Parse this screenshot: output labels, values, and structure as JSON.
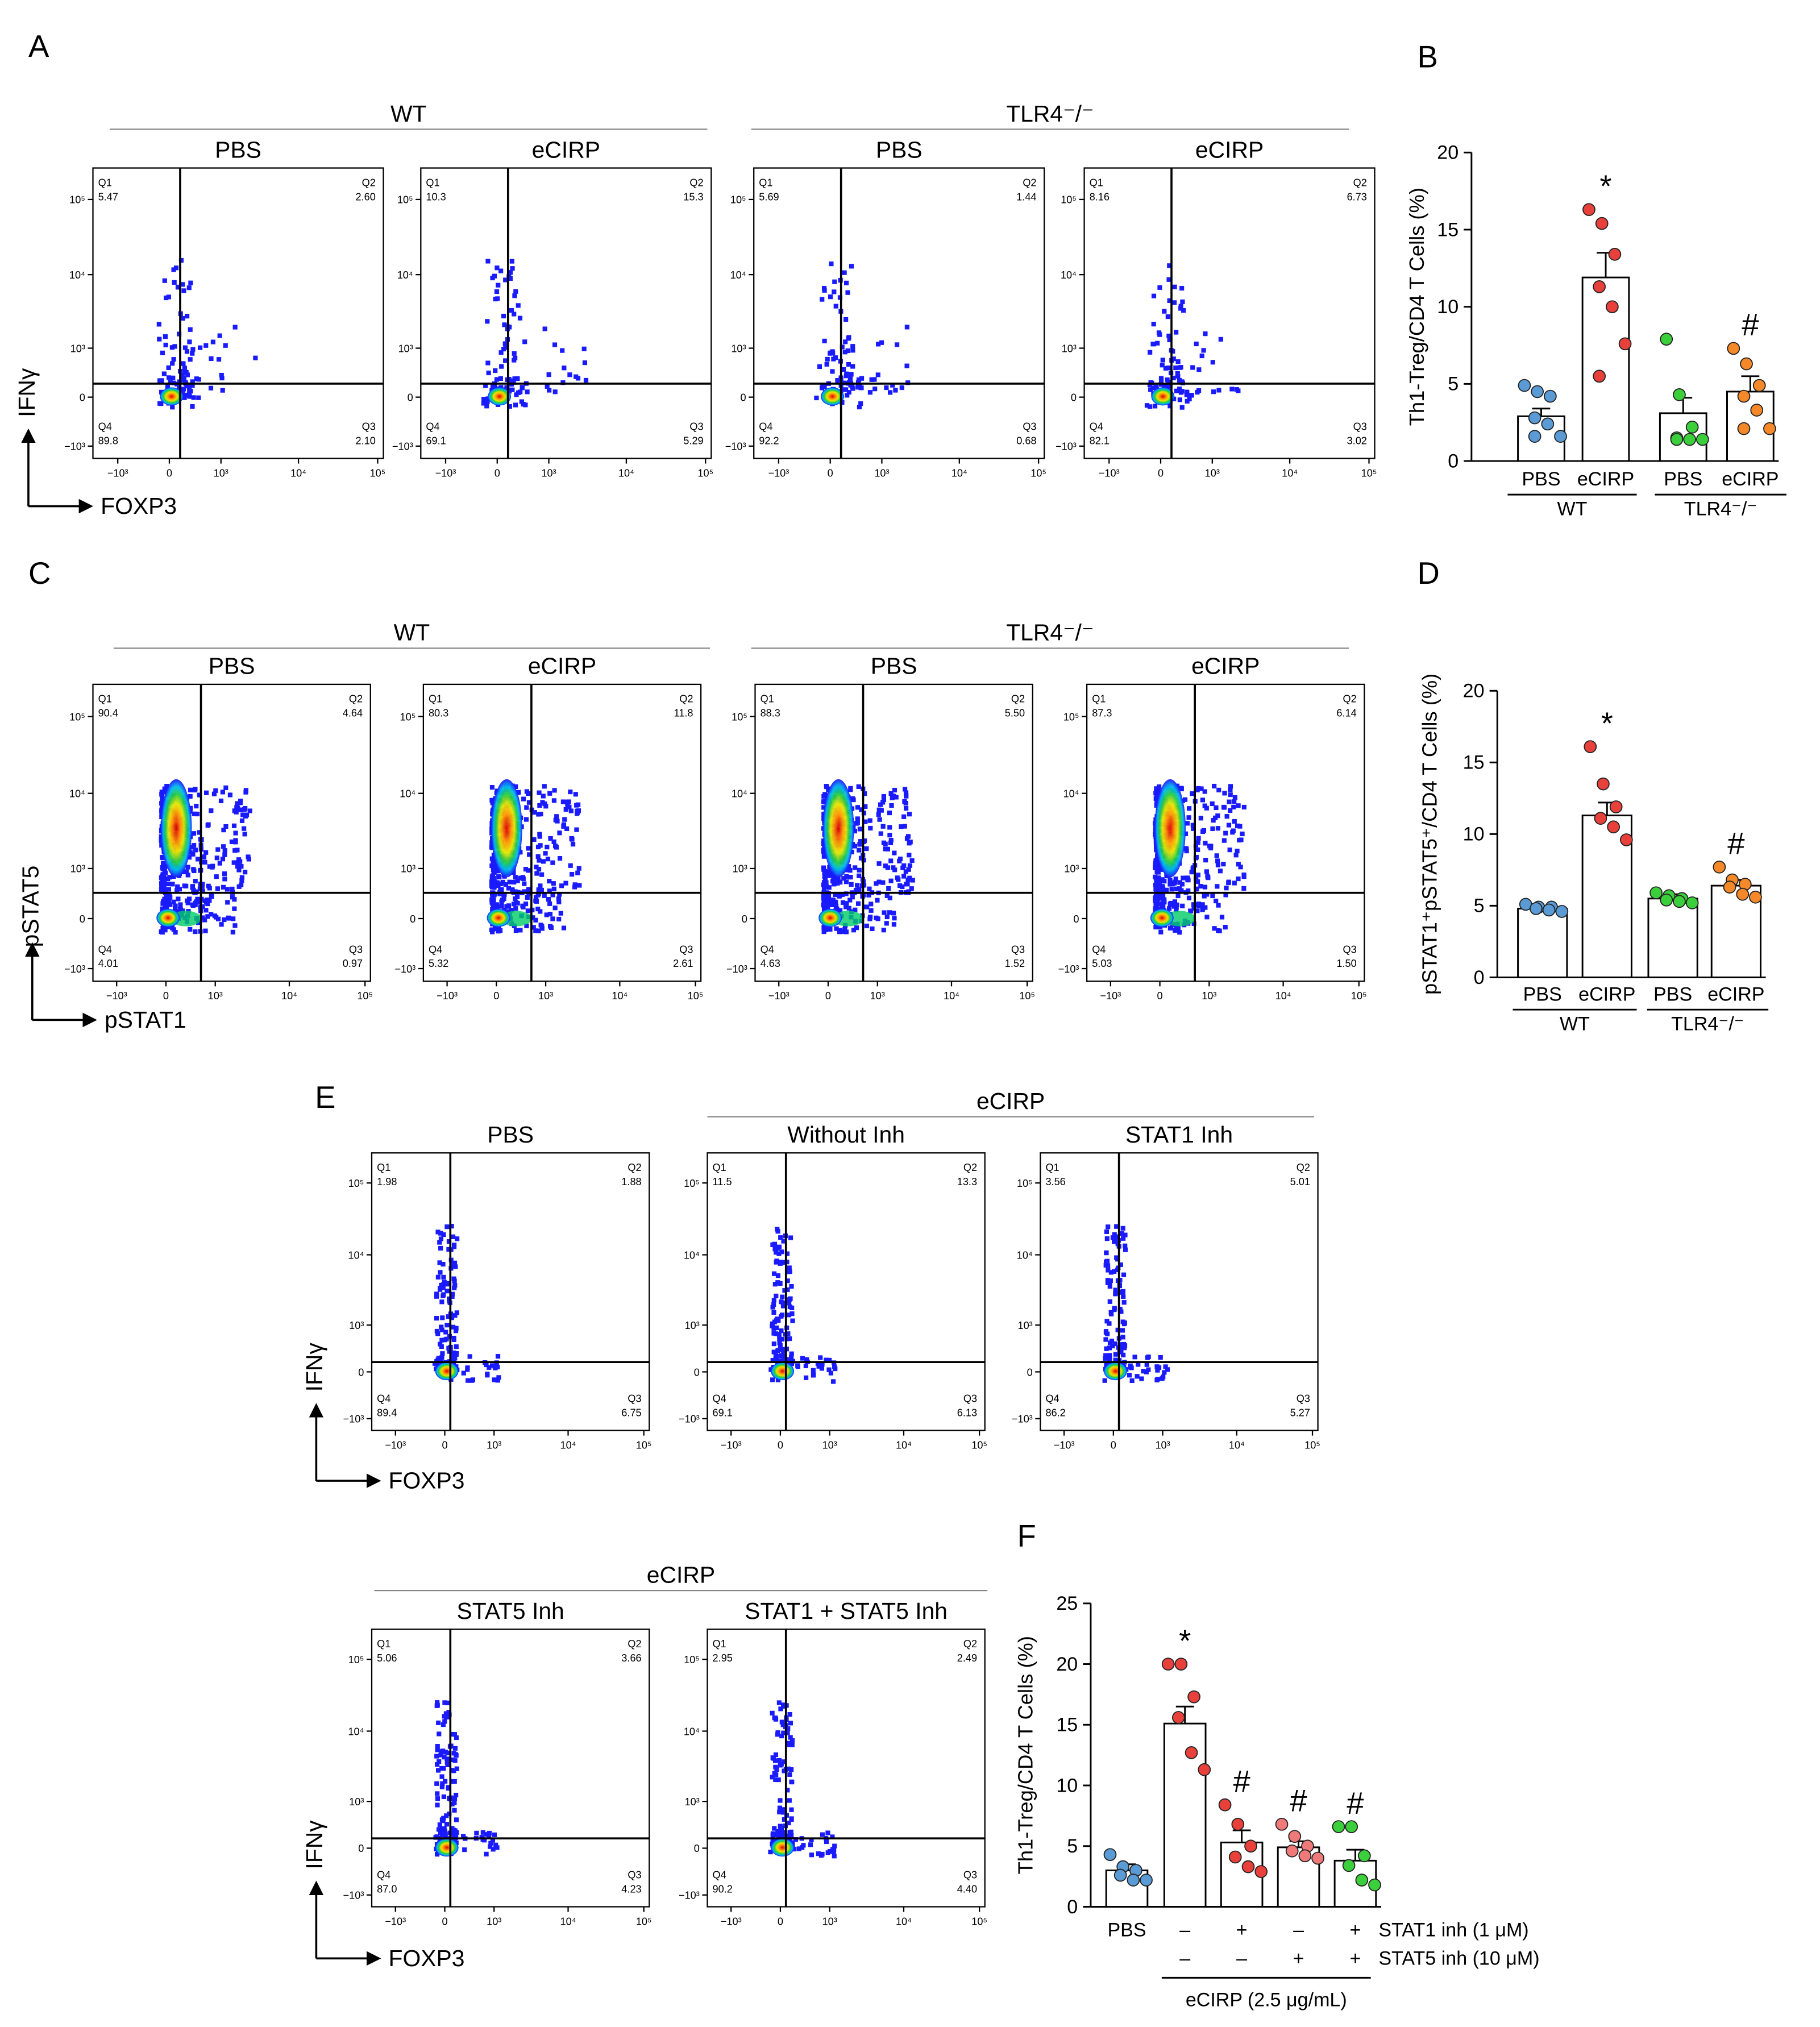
{
  "figure": {
    "panel_letters": [
      "A",
      "B",
      "C",
      "D",
      "E",
      "F"
    ],
    "headers": [
      "WT",
      "TLR4⁻/⁻",
      "WT",
      "TLR4⁻/⁻",
      "eCIRP",
      "eCIRP"
    ],
    "axis_labels": [
      {
        "y": "IFNγ",
        "x": "FOXP3"
      },
      {
        "y": "pSTAT5",
        "x": "pSTAT1"
      },
      {
        "y": "IFNγ",
        "x": "FOXP3"
      },
      {
        "y": "IFNγ",
        "x": "FOXP3"
      }
    ]
  },
  "chart_data": [
    {
      "type": "flow",
      "title": "PBS",
      "quadrant_names": [
        "Q1",
        "Q2",
        "Q3",
        "Q4"
      ],
      "quadrant_values": [
        5.47,
        2.6,
        2.1,
        89.8
      ],
      "value_labels": [
        "5.47",
        "2.60",
        "2.10",
        "89.8"
      ],
      "gate": [
        150,
        200
      ],
      "xlim": [
        -2140,
        118000
      ],
      "ylim": [
        -1500,
        262144
      ],
      "xticks": [
        {
          "value": -1000,
          "label": "−10³"
        },
        0,
        {
          "value": 1000,
          "label": "10³"
        },
        {
          "value": 10000,
          "label": "10⁴"
        },
        {
          "value": 100000,
          "label": "10⁵"
        }
      ],
      "yticks": [
        {
          "value": -1000,
          "label": "−10³"
        },
        0,
        {
          "value": 1000,
          "label": "10³"
        },
        {
          "value": 10000,
          "label": "10⁴"
        },
        {
          "value": 100000,
          "label": "10⁵"
        }
      ]
    },
    {
      "type": "flow",
      "title": "eCIRP",
      "quadrant_names": [
        "Q1",
        "Q2",
        "Q3",
        "Q4"
      ],
      "quadrant_values": [
        10.3,
        15.3,
        5.29,
        69.1
      ],
      "value_labels": [
        "10.3",
        "15.3",
        "5.29",
        "69.1"
      ],
      "gate": [
        150,
        200
      ],
      "xlim": [
        -2140,
        118000
      ],
      "ylim": [
        -1500,
        262144
      ],
      "xticks": [
        {
          "value": -1000,
          "label": "−10³"
        },
        0,
        {
          "value": 1000,
          "label": "10³"
        },
        {
          "value": 10000,
          "label": "10⁴"
        },
        {
          "value": 100000,
          "label": "10⁵"
        }
      ],
      "yticks": [
        {
          "value": -1000,
          "label": "−10³"
        },
        0,
        {
          "value": 1000,
          "label": "10³"
        },
        {
          "value": 10000,
          "label": "10⁴"
        },
        {
          "value": 100000,
          "label": "10⁵"
        }
      ]
    },
    {
      "type": "flow",
      "title": "PBS",
      "quadrant_names": [
        "Q1",
        "Q2",
        "Q3",
        "Q4"
      ],
      "quadrant_values": [
        5.69,
        1.44,
        0.68,
        92.2
      ],
      "value_labels": [
        "5.69",
        "1.44",
        "0.68",
        "92.2"
      ],
      "gate": [
        150,
        200
      ],
      "xlim": [
        -2140,
        118000
      ],
      "ylim": [
        -1500,
        262144
      ],
      "xticks": [
        {
          "value": -1000,
          "label": "−10³"
        },
        0,
        {
          "value": 1000,
          "label": "10³"
        },
        {
          "value": 10000,
          "label": "10⁴"
        },
        {
          "value": 100000,
          "label": "10⁵"
        }
      ],
      "yticks": [
        {
          "value": -1000,
          "label": "−10³"
        },
        0,
        {
          "value": 1000,
          "label": "10³"
        },
        {
          "value": 10000,
          "label": "10⁴"
        },
        {
          "value": 100000,
          "label": "10⁵"
        }
      ]
    },
    {
      "type": "flow",
      "title": "eCIRP",
      "quadrant_names": [
        "Q1",
        "Q2",
        "Q3",
        "Q4"
      ],
      "quadrant_values": [
        8.16,
        6.73,
        3.02,
        82.1
      ],
      "value_labels": [
        "8.16",
        "6.73",
        "3.02",
        "82.1"
      ],
      "gate": [
        150,
        200
      ],
      "xlim": [
        -2140,
        118000
      ],
      "ylim": [
        -1500,
        262144
      ],
      "xticks": [
        {
          "value": -1000,
          "label": "−10³"
        },
        0,
        {
          "value": 1000,
          "label": "10³"
        },
        {
          "value": 10000,
          "label": "10⁴"
        },
        {
          "value": 100000,
          "label": "10⁵"
        }
      ],
      "yticks": [
        {
          "value": -1000,
          "label": "−10³"
        },
        0,
        {
          "value": 1000,
          "label": "10³"
        },
        {
          "value": 10000,
          "label": "10⁴"
        },
        {
          "value": 100000,
          "label": "10⁵"
        }
      ]
    },
    {
      "type": "flow",
      "title": "PBS",
      "quadrant_names": [
        "Q1",
        "Q2",
        "Q3",
        "Q4"
      ],
      "quadrant_values": [
        90.4,
        4.64,
        0.97,
        4.01
      ],
      "value_labels": [
        "90.4",
        "4.64",
        "0.97",
        "4.01"
      ],
      "gate": [
        600,
        400
      ],
      "xlim": [
        -2140,
        118000
      ],
      "ylim": [
        -1500,
        262144
      ],
      "xticks": [
        {
          "value": -1000,
          "label": "−10³"
        },
        0,
        {
          "value": 1000,
          "label": "10³"
        },
        {
          "value": 10000,
          "label": "10⁴"
        },
        {
          "value": 100000,
          "label": "10⁵"
        }
      ],
      "yticks": [
        {
          "value": -1000,
          "label": "−10³"
        },
        0,
        {
          "value": 1000,
          "label": "10³"
        },
        {
          "value": 10000,
          "label": "10⁴"
        },
        {
          "value": 100000,
          "label": "10⁵"
        }
      ]
    },
    {
      "type": "flow",
      "title": "eCIRP",
      "quadrant_names": [
        "Q1",
        "Q2",
        "Q3",
        "Q4"
      ],
      "quadrant_values": [
        80.3,
        11.8,
        2.61,
        5.32
      ],
      "value_labels": [
        "80.3",
        "11.8",
        "2.61",
        "5.32"
      ],
      "gate": [
        600,
        400
      ],
      "xlim": [
        -2140,
        118000
      ],
      "ylim": [
        -1500,
        262144
      ],
      "xticks": [
        {
          "value": -1000,
          "label": "−10³"
        },
        0,
        {
          "value": 1000,
          "label": "10³"
        },
        {
          "value": 10000,
          "label": "10⁴"
        },
        {
          "value": 100000,
          "label": "10⁵"
        }
      ],
      "yticks": [
        {
          "value": -1000,
          "label": "−10³"
        },
        0,
        {
          "value": 1000,
          "label": "10³"
        },
        {
          "value": 10000,
          "label": "10⁴"
        },
        {
          "value": 100000,
          "label": "10⁵"
        }
      ]
    },
    {
      "type": "flow",
      "title": "PBS",
      "quadrant_names": [
        "Q1",
        "Q2",
        "Q3",
        "Q4"
      ],
      "quadrant_values": [
        88.3,
        5.5,
        1.52,
        4.63
      ],
      "value_labels": [
        "88.3",
        "5.50",
        "1.52",
        "4.63"
      ],
      "gate": [
        600,
        400
      ],
      "xlim": [
        -2140,
        118000
      ],
      "ylim": [
        -1500,
        262144
      ],
      "xticks": [
        {
          "value": -1000,
          "label": "−10³"
        },
        0,
        {
          "value": 1000,
          "label": "10³"
        },
        {
          "value": 10000,
          "label": "10⁴"
        },
        {
          "value": 100000,
          "label": "10⁵"
        }
      ],
      "yticks": [
        {
          "value": -1000,
          "label": "−10³"
        },
        0,
        {
          "value": 1000,
          "label": "10³"
        },
        {
          "value": 10000,
          "label": "10⁴"
        },
        {
          "value": 100000,
          "label": "10⁵"
        }
      ]
    },
    {
      "type": "flow",
      "title": "eCIRP",
      "quadrant_names": [
        "Q1",
        "Q2",
        "Q3",
        "Q4"
      ],
      "quadrant_values": [
        87.3,
        6.14,
        1.5,
        5.03
      ],
      "value_labels": [
        "87.3",
        "6.14",
        "1.50",
        "5.03"
      ],
      "gate": [
        600,
        400
      ],
      "xlim": [
        -2140,
        118000
      ],
      "ylim": [
        -1500,
        262144
      ],
      "xticks": [
        {
          "value": -1000,
          "label": "−10³"
        },
        0,
        {
          "value": 1000,
          "label": "10³"
        },
        {
          "value": 10000,
          "label": "10⁴"
        },
        {
          "value": 100000,
          "label": "10⁵"
        }
      ],
      "yticks": [
        {
          "value": -1000,
          "label": "−10³"
        },
        0,
        {
          "value": 1000,
          "label": "10³"
        },
        {
          "value": 10000,
          "label": "10⁴"
        },
        {
          "value": 100000,
          "label": "10⁵"
        }
      ]
    },
    {
      "type": "flow",
      "title": "PBS",
      "quadrant_names": [
        "Q1",
        "Q2",
        "Q3",
        "Q4"
      ],
      "quadrant_values": [
        1.98,
        1.88,
        6.75,
        89.4
      ],
      "value_labels": [
        "1.98",
        "1.88",
        "6.75",
        "89.4"
      ],
      "gate": [
        80,
        150
      ],
      "xlim": [
        -2140,
        118000
      ],
      "ylim": [
        -1500,
        262144
      ],
      "xticks": [
        {
          "value": -1000,
          "label": "−10³"
        },
        0,
        {
          "value": 1000,
          "label": "10³"
        },
        {
          "value": 10000,
          "label": "10⁴"
        },
        {
          "value": 100000,
          "label": "10⁵"
        }
      ],
      "yticks": [
        {
          "value": -1000,
          "label": "−10³"
        },
        0,
        {
          "value": 1000,
          "label": "10³"
        },
        {
          "value": 10000,
          "label": "10⁴"
        },
        {
          "value": 100000,
          "label": "10⁵"
        }
      ]
    },
    {
      "type": "flow",
      "title": "Without Inh",
      "quadrant_names": [
        "Q1",
        "Q2",
        "Q3",
        "Q4"
      ],
      "quadrant_values": [
        11.5,
        13.3,
        6.13,
        69.1
      ],
      "value_labels": [
        "11.5",
        "13.3",
        "6.13",
        "69.1"
      ],
      "gate": [
        80,
        150
      ],
      "xlim": [
        -2140,
        118000
      ],
      "ylim": [
        -1500,
        262144
      ],
      "xticks": [
        {
          "value": -1000,
          "label": "−10³"
        },
        0,
        {
          "value": 1000,
          "label": "10³"
        },
        {
          "value": 10000,
          "label": "10⁴"
        },
        {
          "value": 100000,
          "label": "10⁵"
        }
      ],
      "yticks": [
        {
          "value": -1000,
          "label": "−10³"
        },
        0,
        {
          "value": 1000,
          "label": "10³"
        },
        {
          "value": 10000,
          "label": "10⁴"
        },
        {
          "value": 100000,
          "label": "10⁵"
        }
      ]
    },
    {
      "type": "flow",
      "title": "STAT1 Inh",
      "quadrant_names": [
        "Q1",
        "Q2",
        "Q3",
        "Q4"
      ],
      "quadrant_values": [
        3.56,
        5.01,
        5.27,
        86.2
      ],
      "value_labels": [
        "3.56",
        "5.01",
        "5.27",
        "86.2"
      ],
      "gate": [
        80,
        150
      ],
      "xlim": [
        -2140,
        118000
      ],
      "ylim": [
        -1500,
        262144
      ],
      "xticks": [
        {
          "value": -1000,
          "label": "−10³"
        },
        0,
        {
          "value": 1000,
          "label": "10³"
        },
        {
          "value": 10000,
          "label": "10⁴"
        },
        {
          "value": 100000,
          "label": "10⁵"
        }
      ],
      "yticks": [
        {
          "value": -1000,
          "label": "−10³"
        },
        0,
        {
          "value": 1000,
          "label": "10³"
        },
        {
          "value": 10000,
          "label": "10⁴"
        },
        {
          "value": 100000,
          "label": "10⁵"
        }
      ]
    },
    {
      "type": "flow",
      "title": "STAT5 Inh",
      "quadrant_names": [
        "Q1",
        "Q2",
        "Q3",
        "Q4"
      ],
      "quadrant_values": [
        5.06,
        3.66,
        4.23,
        87.0
      ],
      "value_labels": [
        "5.06",
        "3.66",
        "4.23",
        "87.0"
      ],
      "gate": [
        80,
        150
      ],
      "xlim": [
        -2140,
        118000
      ],
      "ylim": [
        -1500,
        262144
      ],
      "xticks": [
        {
          "value": -1000,
          "label": "−10³"
        },
        0,
        {
          "value": 1000,
          "label": "10³"
        },
        {
          "value": 10000,
          "label": "10⁴"
        },
        {
          "value": 100000,
          "label": "10⁵"
        }
      ],
      "yticks": [
        {
          "value": -1000,
          "label": "−10³"
        },
        0,
        {
          "value": 1000,
          "label": "10³"
        },
        {
          "value": 10000,
          "label": "10⁴"
        },
        {
          "value": 100000,
          "label": "10⁵"
        }
      ]
    },
    {
      "type": "flow",
      "title": "STAT1 + STAT5  Inh",
      "quadrant_names": [
        "Q1",
        "Q2",
        "Q3",
        "Q4"
      ],
      "quadrant_values": [
        2.95,
        2.49,
        4.4,
        90.2
      ],
      "value_labels": [
        "2.95",
        "2.49",
        "4.40",
        "90.2"
      ],
      "gate": [
        80,
        150
      ],
      "xlim": [
        -2140,
        118000
      ],
      "ylim": [
        -1500,
        262144
      ],
      "xticks": [
        {
          "value": -1000,
          "label": "−10³"
        },
        0,
        {
          "value": 1000,
          "label": "10³"
        },
        {
          "value": 10000,
          "label": "10⁴"
        },
        {
          "value": 100000,
          "label": "10⁵"
        }
      ],
      "yticks": [
        {
          "value": -1000,
          "label": "−10³"
        },
        0,
        {
          "value": 1000,
          "label": "10³"
        },
        {
          "value": 10000,
          "label": "10⁴"
        },
        {
          "value": 100000,
          "label": "10⁵"
        }
      ]
    },
    {
      "type": "bar",
      "y_label": "Th1-Treg/CD4 T Cells (%)",
      "categories": [
        "PBS",
        "eCIRP",
        "PBS",
        "eCIRP"
      ],
      "groups": [
        "WT",
        "TLR4⁻/⁻"
      ],
      "values": [
        2.9,
        11.9,
        3.1,
        4.5
      ],
      "errors": [
        0.5,
        1.6,
        1.0,
        1.0
      ],
      "points": [
        [
          4.9,
          4.5,
          4.2,
          2.8,
          2.4,
          1.6,
          1.6
        ],
        [
          16.3,
          15.4,
          13.4,
          11.3,
          10.0,
          7.6,
          5.5
        ],
        [
          7.9,
          4.3,
          2.2,
          1.5,
          1.4,
          1.4,
          1.4
        ],
        [
          7.3,
          6.3,
          4.9,
          4.2,
          3.3,
          2.1,
          2.1
        ]
      ],
      "colors": [
        "#5b9bd5",
        "#e8413c",
        "#3ccf3c",
        "#f5892a"
      ],
      "significance": [
        null,
        "*",
        null,
        "#"
      ],
      "ylim": [
        0,
        20
      ],
      "yticks": [
        0,
        5,
        10,
        15,
        20
      ]
    },
    {
      "type": "bar",
      "y_label": "pSTAT1⁺pSTAT5⁺/CD4 T Cells (%)",
      "categories": [
        "PBS",
        "eCIRP",
        "PBS",
        "eCIRP"
      ],
      "groups": [
        "WT",
        "TLR4⁻/⁻"
      ],
      "values": [
        4.8,
        11.3,
        5.5,
        6.4
      ],
      "errors": [
        0.2,
        0.9,
        0.3,
        0.4
      ],
      "points": [
        [
          5.1,
          4.9,
          4.9,
          4.8,
          4.7,
          4.6
        ],
        [
          16.1,
          13.5,
          11.9,
          11.1,
          10.5,
          9.6
        ],
        [
          5.9,
          5.7,
          5.5,
          5.4,
          5.3,
          5.2
        ],
        [
          7.7,
          6.8,
          6.5,
          6.3,
          5.8,
          5.6
        ]
      ],
      "colors": [
        "#5b9bd5",
        "#e8413c",
        "#3ccf3c",
        "#f5892a"
      ],
      "significance": [
        null,
        "*",
        null,
        "#"
      ],
      "ylim": [
        0,
        20
      ],
      "yticks": [
        0,
        5,
        10,
        15,
        20
      ]
    },
    {
      "type": "bar",
      "y_label": "Th1-Treg/CD4 T Cells (%)",
      "categories": [
        "PBS",
        "–",
        "+",
        "–",
        "+"
      ],
      "second_row": [
        null,
        "–",
        "–",
        "+",
        "+"
      ],
      "row_labels": [
        "STAT1 inh (1 μM)",
        "STAT5 inh (10 μM)"
      ],
      "group_label": "eCIRP (2.5 μg/mL)",
      "values": [
        3.0,
        15.1,
        5.3,
        4.9,
        3.8
      ],
      "errors": [
        0.5,
        1.4,
        1.0,
        0.5,
        0.9
      ],
      "points": [
        [
          4.3,
          3.3,
          3.0,
          2.6,
          2.2,
          2.2
        ],
        [
          20.0,
          20.0,
          17.3,
          15.6,
          12.7,
          11.3
        ],
        [
          8.4,
          6.8,
          5.0,
          4.1,
          3.3,
          2.9
        ],
        [
          6.8,
          5.8,
          5.0,
          4.6,
          4.2,
          4.0
        ],
        [
          6.6,
          6.6,
          4.2,
          3.4,
          2.2,
          1.8
        ]
      ],
      "colors": [
        "#5b9bd5",
        "#e8413c",
        "#e8413c",
        "#f07a7a",
        "#3ccf3c"
      ],
      "significance": [
        null,
        "*",
        "#",
        "#",
        "#"
      ],
      "ylim": [
        0,
        25
      ],
      "yticks": [
        0,
        5,
        10,
        15,
        20,
        25
      ]
    }
  ]
}
